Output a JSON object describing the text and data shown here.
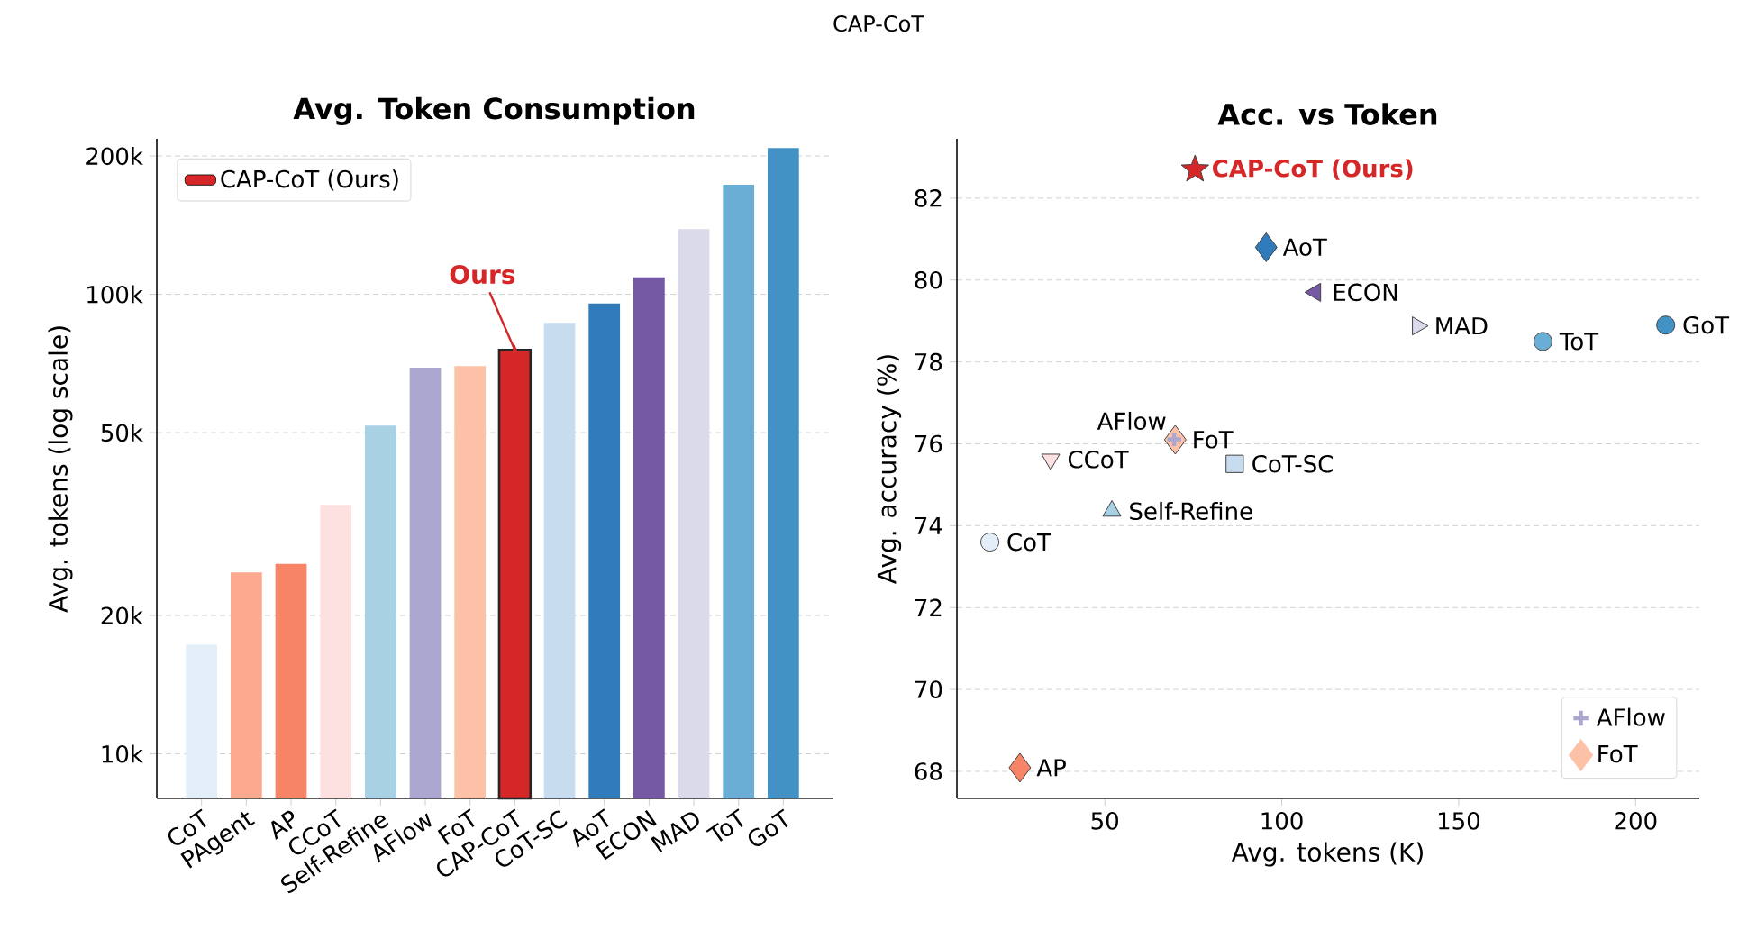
{
  "chart_data": [
    {
      "type": "bar",
      "title": "Avg. Token Consumption",
      "ylabel": "Avg. tokens (log scale)",
      "log": "y",
      "grid": "y",
      "legend": "top left",
      "categories": [
        "CoT",
        "PAgent",
        "AP",
        "CCoT",
        "Self-Refine",
        "AFlow",
        "FoT",
        "CAP-CoT",
        "CoT-SC",
        "AoT",
        "ECON",
        "MAD",
        "ToT",
        "GoT"
      ],
      "series": [
        {
          "name": "CAP-CoT (Ours)",
          "color": "#d62728",
          "values": [
            17300,
            24800,
            25900,
            34800,
            51800,
            69200,
            69800,
            75700,
            86700,
            95500,
            108900,
            138600,
            173200,
            208000
          ],
          "colors": [
            "#e3eef8",
            "#fca98f",
            "#f88467",
            "#fde1e0",
            "#a9d1e4",
            "#aba7d0",
            "#fcc1a6",
            "#d62728",
            "#c7dcef",
            "#2f7bbb",
            "#7559a5",
            "#dadaeb",
            "#6aaed6",
            "#4292c6"
          ]
        }
      ],
      "ylim": [
        8000,
        218000
      ],
      "yticks": [
        {
          "value": 10000,
          "label": "10k"
        },
        {
          "value": 20000,
          "label": "20k"
        },
        {
          "value": 50000,
          "label": "50k"
        },
        {
          "value": 100000,
          "label": "100k"
        },
        {
          "value": 200000,
          "label": "200k"
        }
      ],
      "annotations": [
        "CAP-CoT",
        {
          "text": "Ours",
          "x": "CAP-CoT",
          "y": 75700
        }
      ]
    },
    {
      "type": "scatter",
      "title": "Acc. vs Token",
      "xlabel": "Avg. tokens (K)",
      "ylabel": "Avg. accuracy (%)",
      "grid": "y",
      "legend": "bottom right",
      "xlim": [
        8.2,
        218
      ],
      "ylim": [
        67.34,
        83.45
      ],
      "xticks": [
        50,
        100,
        150,
        200
      ],
      "yticks": [
        68,
        70,
        72,
        74,
        76,
        78,
        80,
        82
      ],
      "series": [
        {
          "name": "AFlow",
          "color": "#aba7d0",
          "marker": "plus",
          "x": [
            69.6
          ],
          "values": [
            76.11
          ]
        },
        {
          "name": "FoT",
          "color": "#fcc1a6",
          "marker": "diamond",
          "x": [
            69.9
          ],
          "values": [
            76.1
          ]
        },
        {
          "color": "#e3eef8",
          "marker": "circle",
          "x": [
            17.5
          ],
          "values": [
            73.6
          ]
        },
        {
          "color": "#f88467",
          "marker": "diamond",
          "x": [
            26.0
          ],
          "values": [
            68.09
          ]
        },
        {
          "color": "#fde1e0",
          "marker": "triangle_down",
          "x": [
            34.7
          ],
          "values": [
            75.62
          ]
        },
        {
          "color": "#a9d1e4",
          "marker": "triangle",
          "x": [
            52.0
          ],
          "values": [
            74.36
          ]
        },
        {
          "color": "#c7dcef",
          "marker": "square",
          "x": [
            86.7
          ],
          "values": [
            75.51
          ]
        },
        {
          "color": "#2f7bbb",
          "marker": "diamond",
          "x": [
            95.6
          ],
          "values": [
            80.8
          ]
        },
        {
          "color": "#7559a5",
          "marker": "triangle_left",
          "x": [
            109.5
          ],
          "values": [
            79.7
          ]
        },
        {
          "color": "#dadaeb",
          "marker": "triangle_right",
          "x": [
            138.4
          ],
          "values": [
            78.88
          ]
        },
        {
          "color": "#6aaed6",
          "x": [
            173.8
          ],
          "values": [
            78.5
          ]
        },
        {
          "color": "#4292c6",
          "x": [
            208.5
          ],
          "values": [
            78.9
          ]
        },
        {
          "color": "#d62728",
          "marker": "star",
          "x": [
            75.5
          ],
          "values": [
            82.7
          ]
        }
      ],
      "annotations": [
        {
          "text": "AFlow",
          "x": 69.6,
          "y": 76.11
        },
        {
          "text": "FoT",
          "x": 69.9,
          "y": 76.1
        },
        {
          "text": "CoT",
          "x": 17.5,
          "y": 73.6
        },
        {
          "text": "AP",
          "x": 26.0,
          "y": 68.09
        },
        {
          "text": "CCoT",
          "x": 34.7,
          "y": 75.62
        },
        {
          "text": "Self-Refine",
          "x": 52.0,
          "y": 74.36
        },
        {
          "text": "CoT-SC",
          "x": 86.7,
          "y": 75.51
        },
        {
          "text": "AoT",
          "x": 95.6,
          "y": 80.8
        },
        {
          "text": "ECON",
          "x": 109.5,
          "y": 79.7
        },
        {
          "text": "MAD",
          "x": 138.4,
          "y": 78.88
        },
        {
          "text": "ToT",
          "x": 173.8,
          "y": 78.5
        },
        {
          "text": "GoT",
          "x": 208.5,
          "y": 78.9
        },
        {
          "text": "CAP-CoT (Ours)",
          "x": 75.5,
          "y": 82.7
        }
      ]
    }
  ]
}
